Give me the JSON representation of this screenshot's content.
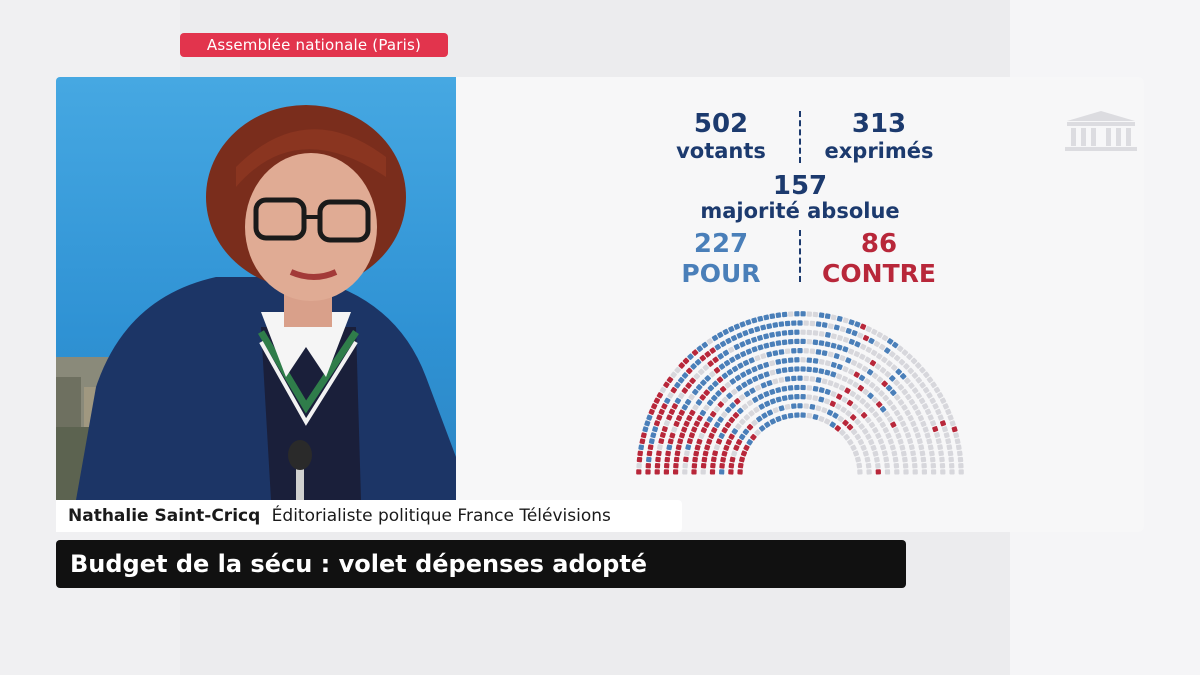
{
  "location": "Assemblée nationale (Paris)",
  "vote": {
    "votants_value": "502",
    "votants_label": "votants",
    "exprimes_value": "313",
    "exprimes_label": "exprimés",
    "majorite_value": "157",
    "majorite_label": "majorité absolue",
    "pour_value": "227",
    "pour_label": "POUR",
    "contre_value": "86",
    "contre_label": "CONTRE"
  },
  "speaker": {
    "name": "Nathalie Saint-Cricq",
    "title": "Éditorialiste politique France Télévisions"
  },
  "headline": "Budget de la sécu : volet dépenses adopté",
  "colors": {
    "location_tag": "#e2344d",
    "pour": "#4a7fb9",
    "contre": "#b8273a",
    "numbers": "#1c3a6e",
    "headline_bg": "#111111"
  },
  "icons": [
    "assemblee-building-icon",
    "microphone-icon"
  ]
}
